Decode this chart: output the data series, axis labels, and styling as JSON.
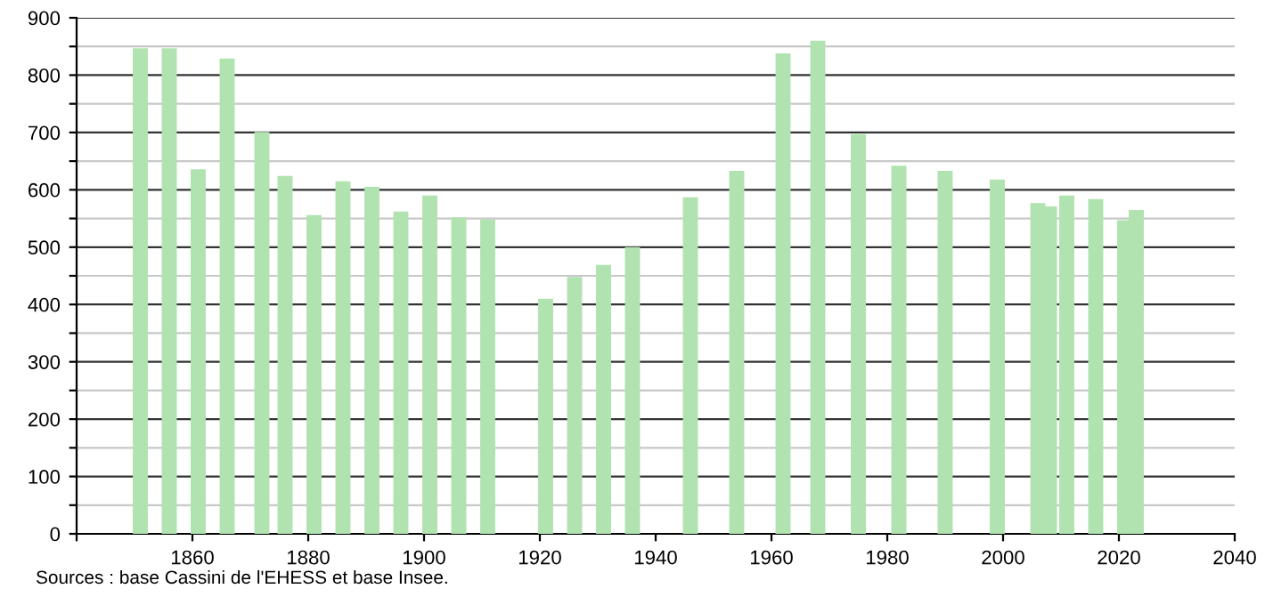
{
  "chart_data": {
    "type": "bar",
    "x": [
      1851,
      1856,
      1861,
      1866,
      1872,
      1876,
      1881,
      1886,
      1891,
      1896,
      1901,
      1906,
      1911,
      1921,
      1926,
      1931,
      1936,
      1946,
      1954,
      1962,
      1968,
      1975,
      1982,
      1990,
      1999,
      2006,
      2008,
      2011,
      2016,
      2021,
      2023
    ],
    "values": [
      847,
      847,
      636,
      829,
      701,
      624,
      556,
      615,
      605,
      562,
      590,
      552,
      548,
      410,
      448,
      469,
      500,
      587,
      633,
      838,
      860,
      697,
      642,
      633,
      618,
      577,
      571,
      590,
      584,
      547,
      565
    ],
    "color": "#b0e3b0",
    "xlim": [
      1840,
      2040
    ],
    "xticks": [
      {
        "value": 1840,
        "label": null
      },
      1860,
      1880,
      1900,
      1920,
      1940,
      1960,
      1980,
      2000,
      2020,
      2040
    ],
    "ylim": [
      0,
      900
    ],
    "yticks": [
      0,
      {
        "value": 50,
        "label": null
      },
      100,
      {
        "value": 150,
        "label": null
      },
      200,
      {
        "value": 250,
        "label": null
      },
      300,
      {
        "value": 350,
        "label": null
      },
      400,
      {
        "value": 450,
        "label": null
      },
      500,
      {
        "value": 550,
        "label": null
      },
      600,
      {
        "value": 650,
        "label": null
      },
      700,
      {
        "value": 750,
        "label": null
      },
      800,
      {
        "value": 850,
        "label": null
      },
      900
    ],
    "grid": "y",
    "annotations": [
      "Sources : base Cassini de l'EHESS et base Insee."
    ]
  }
}
